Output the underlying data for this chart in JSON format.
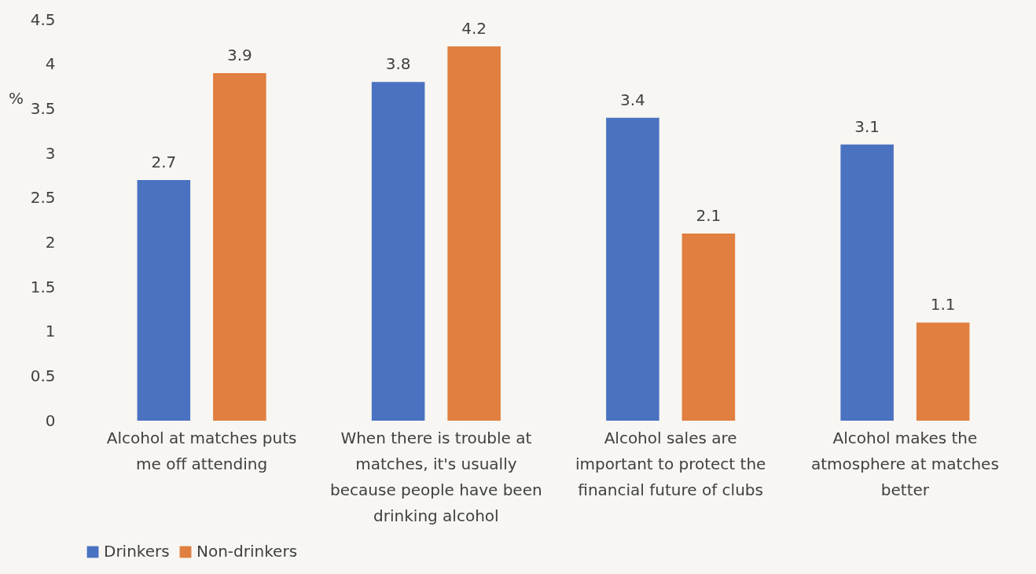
{
  "chart_data": {
    "type": "bar",
    "ylabel": "%",
    "categories": [
      "Alcohol at matches puts me off attending",
      "When there is trouble at matches, it's usually because people have been drinking alcohol",
      "Alcohol sales are important to protect the financial future of clubs",
      "Alcohol makes the atmosphere at matches better"
    ],
    "series": [
      {
        "name": "Drinkers",
        "color": "#4a72c0",
        "values": [
          2.7,
          3.8,
          3.4,
          3.1
        ]
      },
      {
        "name": "Non-drinkers",
        "color": "#e07f40",
        "values": [
          3.9,
          4.2,
          2.1,
          1.1
        ]
      }
    ],
    "ylim": [
      0,
      4.5
    ],
    "yticks": [
      0,
      0.5,
      1,
      1.5,
      2,
      2.5,
      3,
      3.5,
      4,
      4.5
    ],
    "data_labels": true,
    "grid": false,
    "legend": "bottom"
  }
}
